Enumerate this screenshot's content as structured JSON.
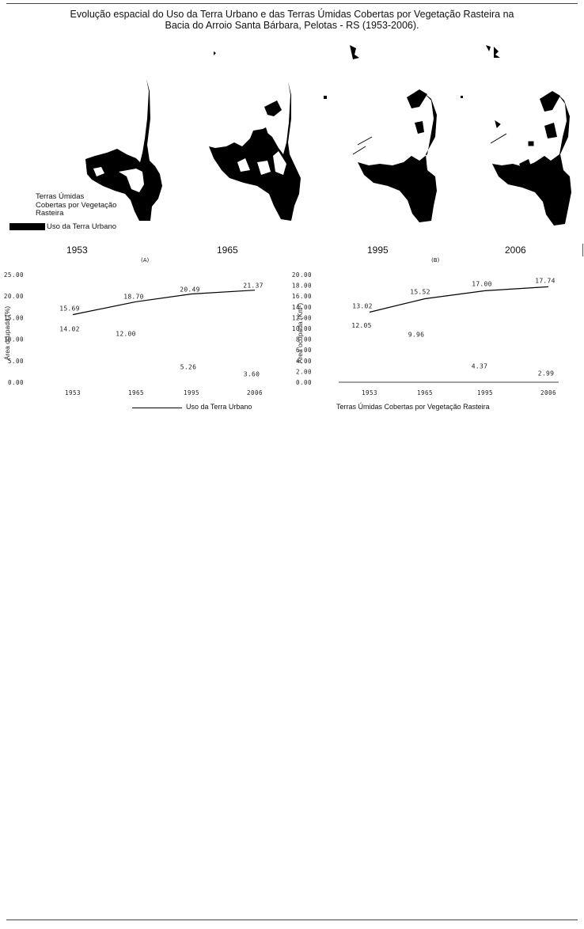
{
  "title": {
    "line1": "Evolução espacial do Uso da Terra Urbano e das Terras Úmidas Cobertas por Vegetação Rasteira na",
    "line2": "Bacia do Arroio Santa Bárbara, Pelotas - RS (1953-2006)."
  },
  "legend": {
    "wetlands_line1": "Terras Úmidas",
    "wetlands_line2": "Cobertas por Vegetação",
    "wetlands_line3": "Rasteira",
    "urban": "Uso da Terra Urbano"
  },
  "years": [
    "1953",
    "1965",
    "1995",
    "2006"
  ],
  "panel_labels": {
    "a": "(A)",
    "b": "(B)"
  },
  "footer": {
    "urban_series": "Uso da Terra Urbano",
    "wetlands_series": "Terras Úmidas Cobertas por Vegetação Rasteira"
  },
  "colors": {
    "urban": "#000000",
    "wetlands": "#ffffff",
    "line": "#000000"
  },
  "chart_data": [
    {
      "type": "line",
      "panel": "(A)",
      "ylabel": "Área ocupada (%)",
      "categories": [
        "1953",
        "1965",
        "1995",
        "2006"
      ],
      "ylim": [
        0,
        25
      ],
      "yticks": [
        "0.00",
        "5.00",
        "10.00",
        "15.00",
        "20.00",
        "25.00"
      ],
      "series": [
        {
          "name": "Uso da Terra Urbano",
          "values": [
            15.69,
            18.7,
            20.49,
            21.37
          ],
          "labels": [
            "15.69",
            "18.70",
            "20.49",
            "21.37"
          ],
          "style": "line"
        },
        {
          "name": "Terras Úmidas Cobertas por Vegetação Rasteira",
          "values": [
            14.02,
            12.0,
            5.26,
            3.6
          ],
          "labels": [
            "14.02",
            "12.00",
            "5.26",
            "3.60"
          ],
          "style": "none"
        }
      ],
      "grid": false
    },
    {
      "type": "line",
      "panel": "(B)",
      "ylabel": "Área ocupada (Km²)",
      "categories": [
        "1953",
        "1965",
        "1995",
        "2006"
      ],
      "ylim": [
        0,
        20
      ],
      "yticks": [
        "0.00",
        "2.00",
        "4.00",
        "6.00",
        "8.00",
        "10.00",
        "12.00",
        "14.00",
        "16.00",
        "18.00",
        "20.00"
      ],
      "series": [
        {
          "name": "Uso da Terra Urbano",
          "values": [
            13.02,
            15.52,
            17.0,
            17.74
          ],
          "labels": [
            "13.02",
            "15.52",
            "17.00",
            "17.74"
          ],
          "style": "line"
        },
        {
          "name": "Terras Úmidas Cobertas por Vegetação Rasteira",
          "values": [
            12.05,
            9.96,
            4.37,
            2.99
          ],
          "labels": [
            "12.05",
            "9.96",
            "4.37",
            "2.99"
          ],
          "style": "none"
        }
      ],
      "grid": false
    }
  ]
}
